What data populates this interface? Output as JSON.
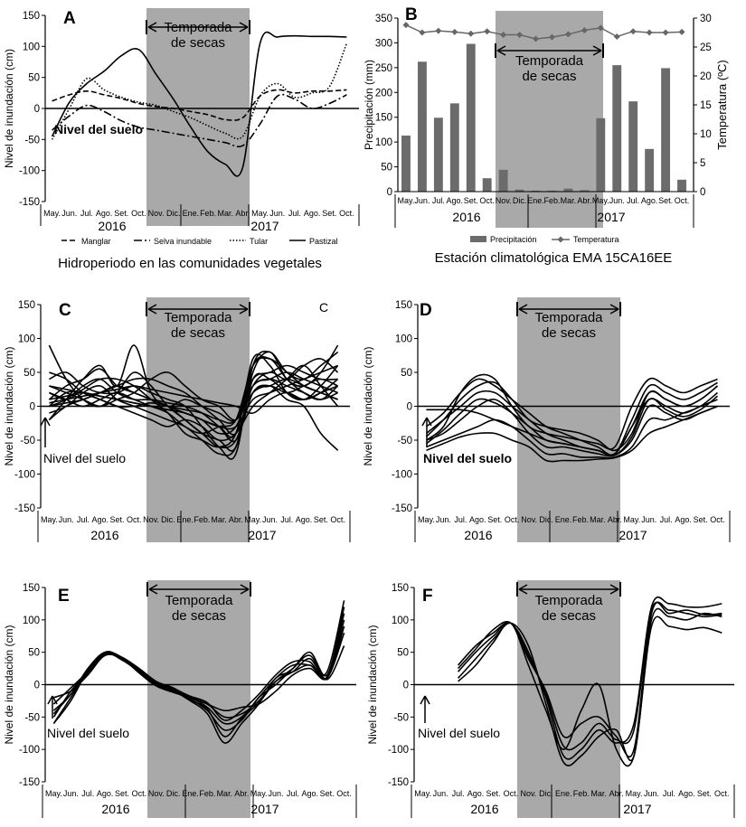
{
  "months": [
    "May.",
    "Jun.",
    "Jul.",
    "Ago.",
    "Set.",
    "Oct.",
    "Nov.",
    "Dic.",
    "Ene.",
    "Feb.",
    "Mar.",
    "Abr.",
    "May.",
    "Jun.",
    "Jul.",
    "Ago.",
    "Set.",
    "Oct."
  ],
  "years": [
    "2016",
    "2017"
  ],
  "dry_season_label": [
    "Temporada",
    "de secas"
  ],
  "ground_label": "Nivel del suelo",
  "ylabel_flood": "Nivel de inundación (cm)",
  "colors": {
    "shade": "#a9a9a9",
    "bar": "#6b6b6b",
    "line": "#000000",
    "temp": "#666666"
  },
  "chart_data": [
    {
      "panel": "A",
      "type": "line",
      "ylabel": "Nivel de inundación (cm)",
      "ylim": [
        -150,
        150
      ],
      "yticks": [
        -150,
        -100,
        -50,
        0,
        50,
        100,
        150
      ],
      "caption": "Hidroperiodo en las comunidades vegetales",
      "series": [
        {
          "name": "Manglar",
          "dash": "6,3",
          "values": [
            12,
            22,
            28,
            22,
            16,
            8,
            3,
            0,
            -5,
            -10,
            -18,
            -15,
            20,
            30,
            25,
            28,
            28,
            30
          ]
        },
        {
          "name": "Selva inundable",
          "dash": "9,3,2,3",
          "values": [
            -35,
            -12,
            5,
            -5,
            -20,
            -30,
            -35,
            -40,
            -45,
            -50,
            -55,
            -60,
            -25,
            20,
            15,
            0,
            8,
            22
          ]
        },
        {
          "name": "Tular",
          "dash": "1.5,2",
          "values": [
            -50,
            0,
            48,
            30,
            18,
            10,
            5,
            -5,
            -15,
            -28,
            -40,
            -45,
            20,
            40,
            18,
            25,
            35,
            105
          ]
        },
        {
          "name": "Pastizal",
          "dash": "",
          "values": [
            -45,
            10,
            40,
            60,
            85,
            95,
            55,
            15,
            -30,
            -70,
            -90,
            -95,
            105,
            115,
            117,
            116,
            116,
            115
          ]
        }
      ]
    },
    {
      "panel": "B",
      "type": "bar",
      "ylabel": "Precipitación (mm)",
      "ylabel_right": "Temperatura (ºC)",
      "ylim": [
        0,
        350
      ],
      "yticks": [
        0,
        50,
        100,
        150,
        200,
        250,
        300,
        350
      ],
      "ylim_right": [
        0,
        30
      ],
      "yticks_right": [
        0,
        5,
        10,
        15,
        20,
        25,
        30
      ],
      "caption": "Estación climatológica EMA 15CA16EE",
      "series": [
        {
          "name": "Precipitación",
          "values": [
            113,
            262,
            149,
            178,
            298,
            27,
            44,
            4,
            2,
            2,
            6,
            3,
            148,
            255,
            182,
            86,
            249,
            24
          ]
        },
        {
          "name": "Temperatura",
          "values": [
            28.8,
            27.5,
            27.8,
            27.6,
            27.3,
            27.7,
            27.1,
            27.1,
            26.4,
            26.7,
            27.2,
            27.9,
            28.3,
            26.8,
            27.7,
            27.5,
            27.5,
            27.6
          ]
        }
      ]
    },
    {
      "panel": "C",
      "type": "line",
      "ylabel": "Nivel de inundación (cm)",
      "ylim": [
        -150,
        150
      ],
      "yticks": [
        -150,
        -100,
        -50,
        0,
        50,
        100,
        150
      ],
      "annotation": "C",
      "series": [
        {
          "values": [
            10,
            30,
            40,
            55,
            30,
            20,
            10,
            0,
            -20,
            -40,
            -50,
            -60,
            50,
            80,
            40,
            30,
            50,
            90
          ]
        },
        {
          "values": [
            40,
            50,
            30,
            20,
            20,
            30,
            20,
            10,
            0,
            -30,
            -60,
            -70,
            60,
            80,
            50,
            40,
            60,
            80
          ]
        },
        {
          "values": [
            20,
            10,
            25,
            40,
            40,
            30,
            10,
            -10,
            -40,
            -50,
            -60,
            -40,
            60,
            70,
            40,
            20,
            10,
            30
          ]
        },
        {
          "values": [
            0,
            5,
            10,
            20,
            30,
            40,
            40,
            30,
            20,
            0,
            -20,
            -40,
            30,
            50,
            40,
            60,
            70,
            50
          ]
        },
        {
          "values": [
            -10,
            0,
            20,
            30,
            10,
            0,
            -10,
            -20,
            -30,
            -50,
            -70,
            -60,
            40,
            40,
            20,
            10,
            20,
            40
          ]
        },
        {
          "values": [
            30,
            20,
            10,
            0,
            10,
            20,
            40,
            50,
            30,
            10,
            0,
            -20,
            20,
            30,
            20,
            30,
            40,
            30
          ]
        },
        {
          "values": [
            10,
            15,
            20,
            15,
            10,
            5,
            0,
            -5,
            -10,
            -20,
            -30,
            -30,
            10,
            20,
            30,
            40,
            50,
            60
          ]
        },
        {
          "values": [
            0,
            10,
            30,
            40,
            20,
            10,
            10,
            5,
            0,
            -10,
            -30,
            -50,
            20,
            30,
            40,
            30,
            20,
            10
          ]
        },
        {
          "values": [
            -20,
            0,
            10,
            20,
            30,
            20,
            10,
            0,
            -10,
            -20,
            -40,
            -30,
            30,
            40,
            50,
            40,
            30,
            20
          ]
        },
        {
          "values": [
            50,
            40,
            20,
            10,
            0,
            -10,
            -20,
            -30,
            -20,
            -30,
            -50,
            -40,
            0,
            20,
            40,
            60,
            30,
            0
          ]
        },
        {
          "values": [
            30,
            25,
            20,
            15,
            10,
            5,
            0,
            -5,
            -10,
            -20,
            -30,
            -40,
            70,
            60,
            20,
            10,
            30,
            60
          ]
        },
        {
          "values": [
            90,
            40,
            10,
            0,
            20,
            50,
            30,
            0,
            -20,
            -40,
            -60,
            -50,
            20,
            30,
            10,
            0,
            -40,
            -65
          ]
        },
        {
          "values": [
            -20,
            10,
            40,
            60,
            30,
            90,
            20,
            0,
            10,
            0,
            -10,
            -20,
            30,
            40,
            30,
            20,
            10,
            20
          ]
        },
        {
          "values": [
            5,
            10,
            15,
            20,
            25,
            30,
            25,
            20,
            15,
            10,
            5,
            0,
            -10,
            10,
            20,
            10,
            20,
            30
          ]
        },
        {
          "values": [
            0,
            20,
            20,
            10,
            0,
            0,
            5,
            0,
            -5,
            -10,
            -20,
            -20,
            40,
            50,
            60,
            50,
            40,
            40
          ]
        },
        {
          "values": [
            20,
            10,
            0,
            10,
            20,
            10,
            0,
            -10,
            -30,
            -40,
            -30,
            -20,
            60,
            70,
            50,
            30,
            20,
            10
          ]
        }
      ]
    },
    {
      "panel": "D",
      "type": "line",
      "ylabel": "Nivel de inundación (cm)",
      "ylim": [
        -150,
        150
      ],
      "yticks": [
        -150,
        -100,
        -50,
        0,
        50,
        100,
        150
      ],
      "series": [
        {
          "values": [
            -50,
            -30,
            20,
            45,
            40,
            0,
            -30,
            -40,
            -45,
            -50,
            -55,
            -60,
            0,
            40,
            30,
            20,
            30,
            40
          ]
        },
        {
          "values": [
            -45,
            -20,
            10,
            30,
            35,
            10,
            -20,
            -30,
            -35,
            -40,
            -50,
            -65,
            -40,
            20,
            10,
            0,
            10,
            30
          ]
        },
        {
          "values": [
            -40,
            -20,
            0,
            20,
            20,
            0,
            -20,
            -40,
            -50,
            -60,
            -65,
            -70,
            -30,
            10,
            0,
            -10,
            0,
            10
          ]
        },
        {
          "values": [
            -50,
            -40,
            -20,
            0,
            10,
            -10,
            -40,
            -60,
            -60,
            -65,
            -70,
            -72,
            -50,
            0,
            -10,
            -20,
            -10,
            0
          ]
        },
        {
          "values": [
            -60,
            -50,
            -40,
            -30,
            -20,
            -30,
            -50,
            -70,
            -70,
            -75,
            -75,
            -75,
            -60,
            -20,
            -20,
            -10,
            0,
            20
          ]
        },
        {
          "values": [
            -30,
            -10,
            20,
            40,
            30,
            10,
            -10,
            -30,
            -40,
            -50,
            -60,
            -70,
            -20,
            30,
            20,
            10,
            20,
            35
          ]
        },
        {
          "values": [
            -55,
            -35,
            -10,
            10,
            5,
            -10,
            -30,
            -50,
            -55,
            -60,
            -65,
            -72,
            -45,
            10,
            -5,
            -15,
            -5,
            15
          ]
        },
        {
          "values": [
            -65,
            -55,
            -45,
            -40,
            -40,
            -50,
            -60,
            -80,
            -80,
            -80,
            -78,
            -76,
            -65,
            -40,
            -30,
            -20,
            -10,
            0
          ]
        },
        {
          "values": [
            -5,
            -5,
            -5,
            -10,
            -20,
            -30,
            -40,
            -50,
            -55,
            -60,
            -65,
            -70,
            -30,
            20,
            10,
            0,
            10,
            30
          ]
        }
      ]
    },
    {
      "panel": "E",
      "type": "line",
      "ylabel": "Nivel de inundación (cm)",
      "ylim": [
        -150,
        150
      ],
      "yticks": [
        -150,
        -100,
        -50,
        0,
        50,
        100,
        150
      ],
      "series": [
        {
          "values": [
            -60,
            -20,
            20,
            48,
            40,
            20,
            0,
            -10,
            -20,
            -35,
            -60,
            -50,
            -20,
            10,
            30,
            30,
            20,
            130
          ]
        },
        {
          "values": [
            -50,
            -10,
            20,
            50,
            42,
            25,
            5,
            -5,
            -20,
            -30,
            -50,
            -45,
            -25,
            5,
            20,
            40,
            10,
            100
          ]
        },
        {
          "values": [
            -40,
            -15,
            25,
            50,
            40,
            22,
            2,
            -8,
            -22,
            -40,
            -70,
            -55,
            -20,
            0,
            25,
            50,
            15,
            110
          ]
        },
        {
          "values": [
            -30,
            -5,
            20,
            48,
            38,
            20,
            0,
            -10,
            -25,
            -45,
            -90,
            -60,
            -30,
            10,
            20,
            30,
            10,
            90
          ]
        },
        {
          "values": [
            -20,
            -10,
            15,
            45,
            40,
            18,
            -2,
            -12,
            -20,
            -30,
            -40,
            -35,
            -30,
            -10,
            15,
            25,
            10,
            80
          ]
        },
        {
          "values": [
            -60,
            -25,
            22,
            50,
            42,
            24,
            3,
            -6,
            -18,
            -28,
            -55,
            -40,
            -15,
            15,
            35,
            35,
            12,
            120
          ]
        },
        {
          "values": [
            -45,
            -15,
            18,
            47,
            40,
            20,
            -1,
            -9,
            -24,
            -38,
            -80,
            -52,
            -28,
            5,
            25,
            45,
            8,
            60
          ]
        }
      ]
    },
    {
      "panel": "F",
      "type": "line",
      "ylabel": "Nivel de inundación (cm)",
      "ylim": [
        -150,
        150
      ],
      "yticks": [
        -150,
        -100,
        -50,
        0,
        50,
        100,
        150
      ],
      "series": [
        {
          "values": [
            null,
            null,
            30,
            60,
            80,
            95,
            50,
            -20,
            -110,
            -100,
            -70,
            -90,
            -60,
            120,
            125,
            120,
            120,
            125
          ]
        },
        {
          "values": [
            null,
            null,
            20,
            50,
            75,
            95,
            40,
            -10,
            -80,
            -60,
            -50,
            -80,
            -100,
            110,
            115,
            110,
            105,
            108
          ]
        },
        {
          "values": [
            null,
            null,
            10,
            40,
            70,
            95,
            60,
            -30,
            -120,
            -110,
            -80,
            -70,
            -110,
            100,
            105,
            100,
            110,
            105
          ]
        },
        {
          "values": [
            null,
            null,
            5,
            30,
            65,
            95,
            30,
            -40,
            -100,
            -40,
            0,
            -100,
            -110,
            90,
            90,
            85,
            88,
            80
          ]
        },
        {
          "values": [
            null,
            null,
            25,
            55,
            85,
            95,
            45,
            -15,
            -95,
            -90,
            -60,
            -85,
            -70,
            115,
            110,
            115,
            108,
            110
          ]
        }
      ]
    }
  ],
  "legend_a": [
    {
      "name": "Manglar"
    },
    {
      "name": "Selva inundable"
    },
    {
      "name": "Tular"
    },
    {
      "name": "Pastizal"
    }
  ],
  "legend_b": [
    {
      "name": "Precipitación"
    },
    {
      "name": "Temperatura"
    }
  ]
}
